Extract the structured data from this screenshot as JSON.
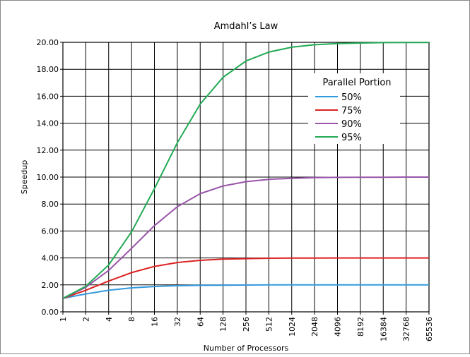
{
  "chart_data": {
    "type": "line",
    "title": "Amdahl’s Law",
    "xlabel": "Number of Processors",
    "ylabel": "Speedup",
    "x_scale": "log2",
    "categories": [
      "1",
      "2",
      "4",
      "8",
      "16",
      "32",
      "64",
      "128",
      "256",
      "512",
      "1024",
      "2048",
      "4096",
      "8192",
      "16384",
      "32768",
      "65536"
    ],
    "ylim": [
      0,
      20
    ],
    "yticks": [
      "0.00",
      "2.00",
      "4.00",
      "6.00",
      "8.00",
      "10.00",
      "12.00",
      "14.00",
      "16.00",
      "18.00",
      "20.00"
    ],
    "grid": true,
    "legend": {
      "title": "Parallel Portion",
      "position": "upper-right"
    },
    "series": [
      {
        "name": "50%",
        "color": "#3399dd",
        "values": [
          1.0,
          1.33,
          1.6,
          1.78,
          1.88,
          1.94,
          1.97,
          1.98,
          1.99,
          2.0,
          2.0,
          2.0,
          2.0,
          2.0,
          2.0,
          2.0,
          2.0
        ]
      },
      {
        "name": "75%",
        "color": "#dd2222",
        "values": [
          1.0,
          1.6,
          2.29,
          2.91,
          3.37,
          3.66,
          3.82,
          3.91,
          3.95,
          3.98,
          3.99,
          3.99,
          4.0,
          4.0,
          4.0,
          4.0,
          4.0
        ]
      },
      {
        "name": "90%",
        "color": "#9955aa",
        "values": [
          1.0,
          1.82,
          3.08,
          4.71,
          6.4,
          7.8,
          8.77,
          9.34,
          9.66,
          9.83,
          9.91,
          9.96,
          9.98,
          9.99,
          9.99,
          10.0,
          10.0
        ]
      },
      {
        "name": "95%",
        "color": "#22aa55",
        "values": [
          1.0,
          1.9,
          3.48,
          5.93,
          9.14,
          12.55,
          15.42,
          17.41,
          18.62,
          19.28,
          19.64,
          19.82,
          19.91,
          19.95,
          19.98,
          19.99,
          19.99
        ]
      }
    ]
  }
}
